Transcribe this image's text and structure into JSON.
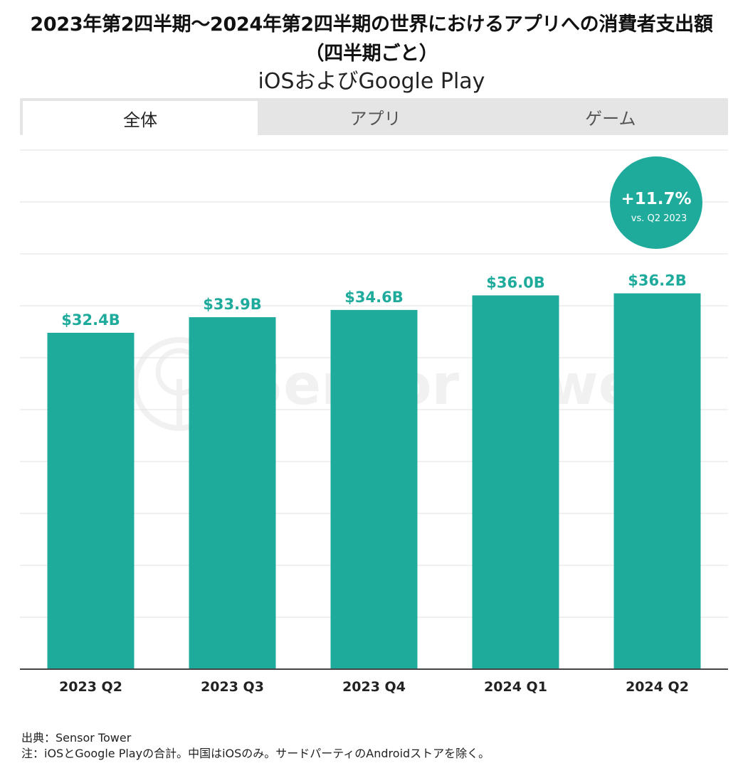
{
  "title": "2023年第2四半期～2024年第2四半期の世界におけるアプリへの消費者支出額（四半期ごと）",
  "subtitle": "iOSおよびGoogle Play",
  "tabs": [
    {
      "label": "全体",
      "active": true
    },
    {
      "label": "アプリ",
      "active": false
    },
    {
      "label": "ゲーム",
      "active": false
    }
  ],
  "badge": {
    "value": "+11.7%",
    "note": "vs. Q2 2023"
  },
  "watermark": "Sensor Tower",
  "colors": {
    "bar": "#1fab9c",
    "label": "#1fab9c",
    "badge": "#1fab9c"
  },
  "chart_data": {
    "type": "bar",
    "categories": [
      "2023 Q2",
      "2023 Q3",
      "2023 Q4",
      "2024 Q1",
      "2024 Q2"
    ],
    "values": [
      32.4,
      33.9,
      34.6,
      36.0,
      36.2
    ],
    "data_labels": [
      "$32.4B",
      "$33.9B",
      "$34.6B",
      "$36.0B",
      "$36.2B"
    ],
    "unit": "USD billions",
    "ylim": [
      0,
      50
    ],
    "gridlines": 10,
    "xlabel": "",
    "ylabel": ""
  },
  "footer": {
    "source": "出典：Sensor Tower",
    "note": "注：iOSとGoogle Playの合計。中国はiOSのみ。サードパーティのAndroidストアを除く。"
  }
}
